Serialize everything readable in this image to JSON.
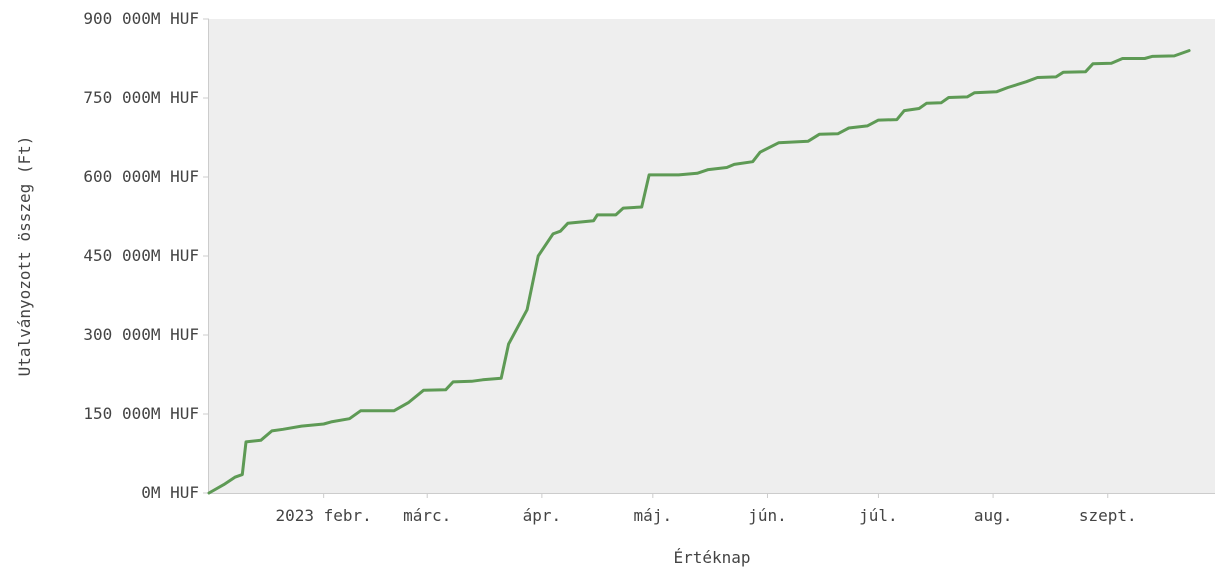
{
  "chart_data": {
    "type": "line",
    "xlabel": "Értéknap",
    "ylabel": "Utalványozott összeg (Ft)",
    "ylim": [
      0,
      900000
    ],
    "yticks": [
      {
        "value": 0,
        "label": "0M HUF"
      },
      {
        "value": 150000,
        "label": "150 000M HUF"
      },
      {
        "value": 300000,
        "label": "300 000M HUF"
      },
      {
        "value": 450000,
        "label": "450 000M HUF"
      },
      {
        "value": 600000,
        "label": "600 000M HUF"
      },
      {
        "value": 750000,
        "label": "750 000M HUF"
      },
      {
        "value": 900000,
        "label": "900 000M HUF"
      }
    ],
    "xlim": [
      "2023-01-01",
      "2023-09-30"
    ],
    "xticks": [
      {
        "date": "2023-02-01",
        "label": "2023 febr."
      },
      {
        "date": "2023-03-01",
        "label": "márc."
      },
      {
        "date": "2023-04-01",
        "label": "ápr."
      },
      {
        "date": "2023-05-01",
        "label": "máj."
      },
      {
        "date": "2023-06-01",
        "label": "jún."
      },
      {
        "date": "2023-07-01",
        "label": "júl."
      },
      {
        "date": "2023-08-01",
        "label": "aug."
      },
      {
        "date": "2023-09-01",
        "label": "szept."
      }
    ],
    "grid": false,
    "colors": {
      "line": "#5e9a55",
      "plot_bg": "#eeeeee",
      "axis": "#cccccc",
      "text": "#444444"
    },
    "series": [
      {
        "values": [
          [
            "2023-01-01",
            0
          ],
          [
            "2023-01-05",
            16000
          ],
          [
            "2023-01-08",
            30000
          ],
          [
            "2023-01-10",
            35000
          ],
          [
            "2023-01-11",
            97000
          ],
          [
            "2023-01-15",
            100000
          ],
          [
            "2023-01-18",
            118000
          ],
          [
            "2023-01-21",
            121000
          ],
          [
            "2023-01-26",
            127000
          ],
          [
            "2023-02-01",
            131000
          ],
          [
            "2023-02-03",
            135000
          ],
          [
            "2023-02-08",
            141000
          ],
          [
            "2023-02-11",
            156000
          ],
          [
            "2023-02-20",
            156000
          ],
          [
            "2023-02-24",
            172000
          ],
          [
            "2023-02-28",
            195000
          ],
          [
            "2023-03-06",
            196000
          ],
          [
            "2023-03-08",
            211000
          ],
          [
            "2023-03-13",
            212000
          ],
          [
            "2023-03-16",
            215000
          ],
          [
            "2023-03-21",
            218000
          ],
          [
            "2023-03-23",
            283000
          ],
          [
            "2023-03-28",
            348000
          ],
          [
            "2023-03-31",
            450000
          ],
          [
            "2023-04-04",
            492000
          ],
          [
            "2023-04-06",
            497000
          ],
          [
            "2023-04-08",
            512000
          ],
          [
            "2023-04-15",
            517000
          ],
          [
            "2023-04-16",
            528000
          ],
          [
            "2023-04-21",
            528000
          ],
          [
            "2023-04-23",
            541000
          ],
          [
            "2023-04-28",
            543000
          ],
          [
            "2023-04-30",
            604000
          ],
          [
            "2023-05-08",
            604000
          ],
          [
            "2023-05-13",
            607000
          ],
          [
            "2023-05-16",
            614000
          ],
          [
            "2023-05-21",
            618000
          ],
          [
            "2023-05-23",
            624000
          ],
          [
            "2023-05-28",
            629000
          ],
          [
            "2023-05-30",
            647000
          ],
          [
            "2023-06-04",
            665000
          ],
          [
            "2023-06-12",
            668000
          ],
          [
            "2023-06-15",
            681000
          ],
          [
            "2023-06-20",
            682000
          ],
          [
            "2023-06-23",
            693000
          ],
          [
            "2023-06-28",
            697000
          ],
          [
            "2023-07-01",
            708000
          ],
          [
            "2023-07-06",
            709000
          ],
          [
            "2023-07-08",
            726000
          ],
          [
            "2023-07-12",
            730000
          ],
          [
            "2023-07-14",
            740000
          ],
          [
            "2023-07-18",
            741000
          ],
          [
            "2023-07-20",
            751000
          ],
          [
            "2023-07-25",
            752000
          ],
          [
            "2023-07-27",
            760000
          ],
          [
            "2023-08-02",
            762000
          ],
          [
            "2023-08-05",
            770000
          ],
          [
            "2023-08-10",
            781000
          ],
          [
            "2023-08-13",
            789000
          ],
          [
            "2023-08-18",
            790000
          ],
          [
            "2023-08-20",
            799000
          ],
          [
            "2023-08-26",
            800000
          ],
          [
            "2023-08-28",
            815000
          ],
          [
            "2023-09-02",
            816000
          ],
          [
            "2023-09-05",
            825000
          ],
          [
            "2023-09-11",
            825000
          ],
          [
            "2023-09-13",
            829000
          ],
          [
            "2023-09-19",
            830000
          ],
          [
            "2023-09-23",
            840000
          ]
        ]
      }
    ]
  }
}
